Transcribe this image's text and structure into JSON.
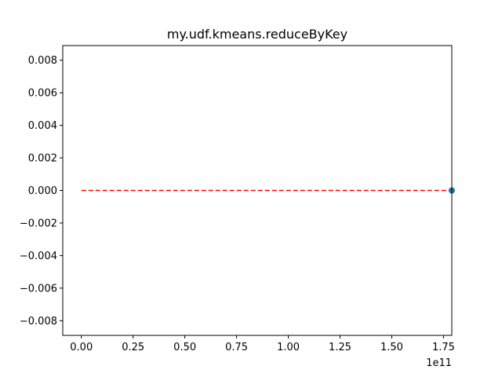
{
  "chart_data": {
    "type": "scatter",
    "title": "my.udf.kmeans.reduceByKey",
    "xlabel": "",
    "ylabel": "",
    "x_offset_label": "1e11",
    "xlim": [
      -0.09,
      1.79
    ],
    "ylim": [
      -0.0089,
      0.0089
    ],
    "x_ticks": [
      0.0,
      0.25,
      0.5,
      0.75,
      1.0,
      1.25,
      1.5,
      1.75
    ],
    "x_tick_labels": [
      "0.00",
      "0.25",
      "0.50",
      "0.75",
      "1.00",
      "1.25",
      "1.50",
      "1.75"
    ],
    "y_ticks": [
      0.008,
      0.006,
      0.004,
      0.002,
      0.0,
      -0.002,
      -0.004,
      -0.006,
      -0.008
    ],
    "y_tick_labels": [
      "0.008",
      "0.006",
      "0.004",
      "0.002",
      "0.000",
      "−0.002",
      "−0.004",
      "−0.006",
      "−0.008"
    ],
    "grid": false,
    "points": [
      {
        "x": 1.79,
        "y": 0.0
      }
    ],
    "point_color": "#1f77b4",
    "reference_line": {
      "x": [
        0.0,
        1.79
      ],
      "y": [
        0.0,
        0.0
      ],
      "style": "dashed",
      "color": "#ff0000"
    }
  }
}
